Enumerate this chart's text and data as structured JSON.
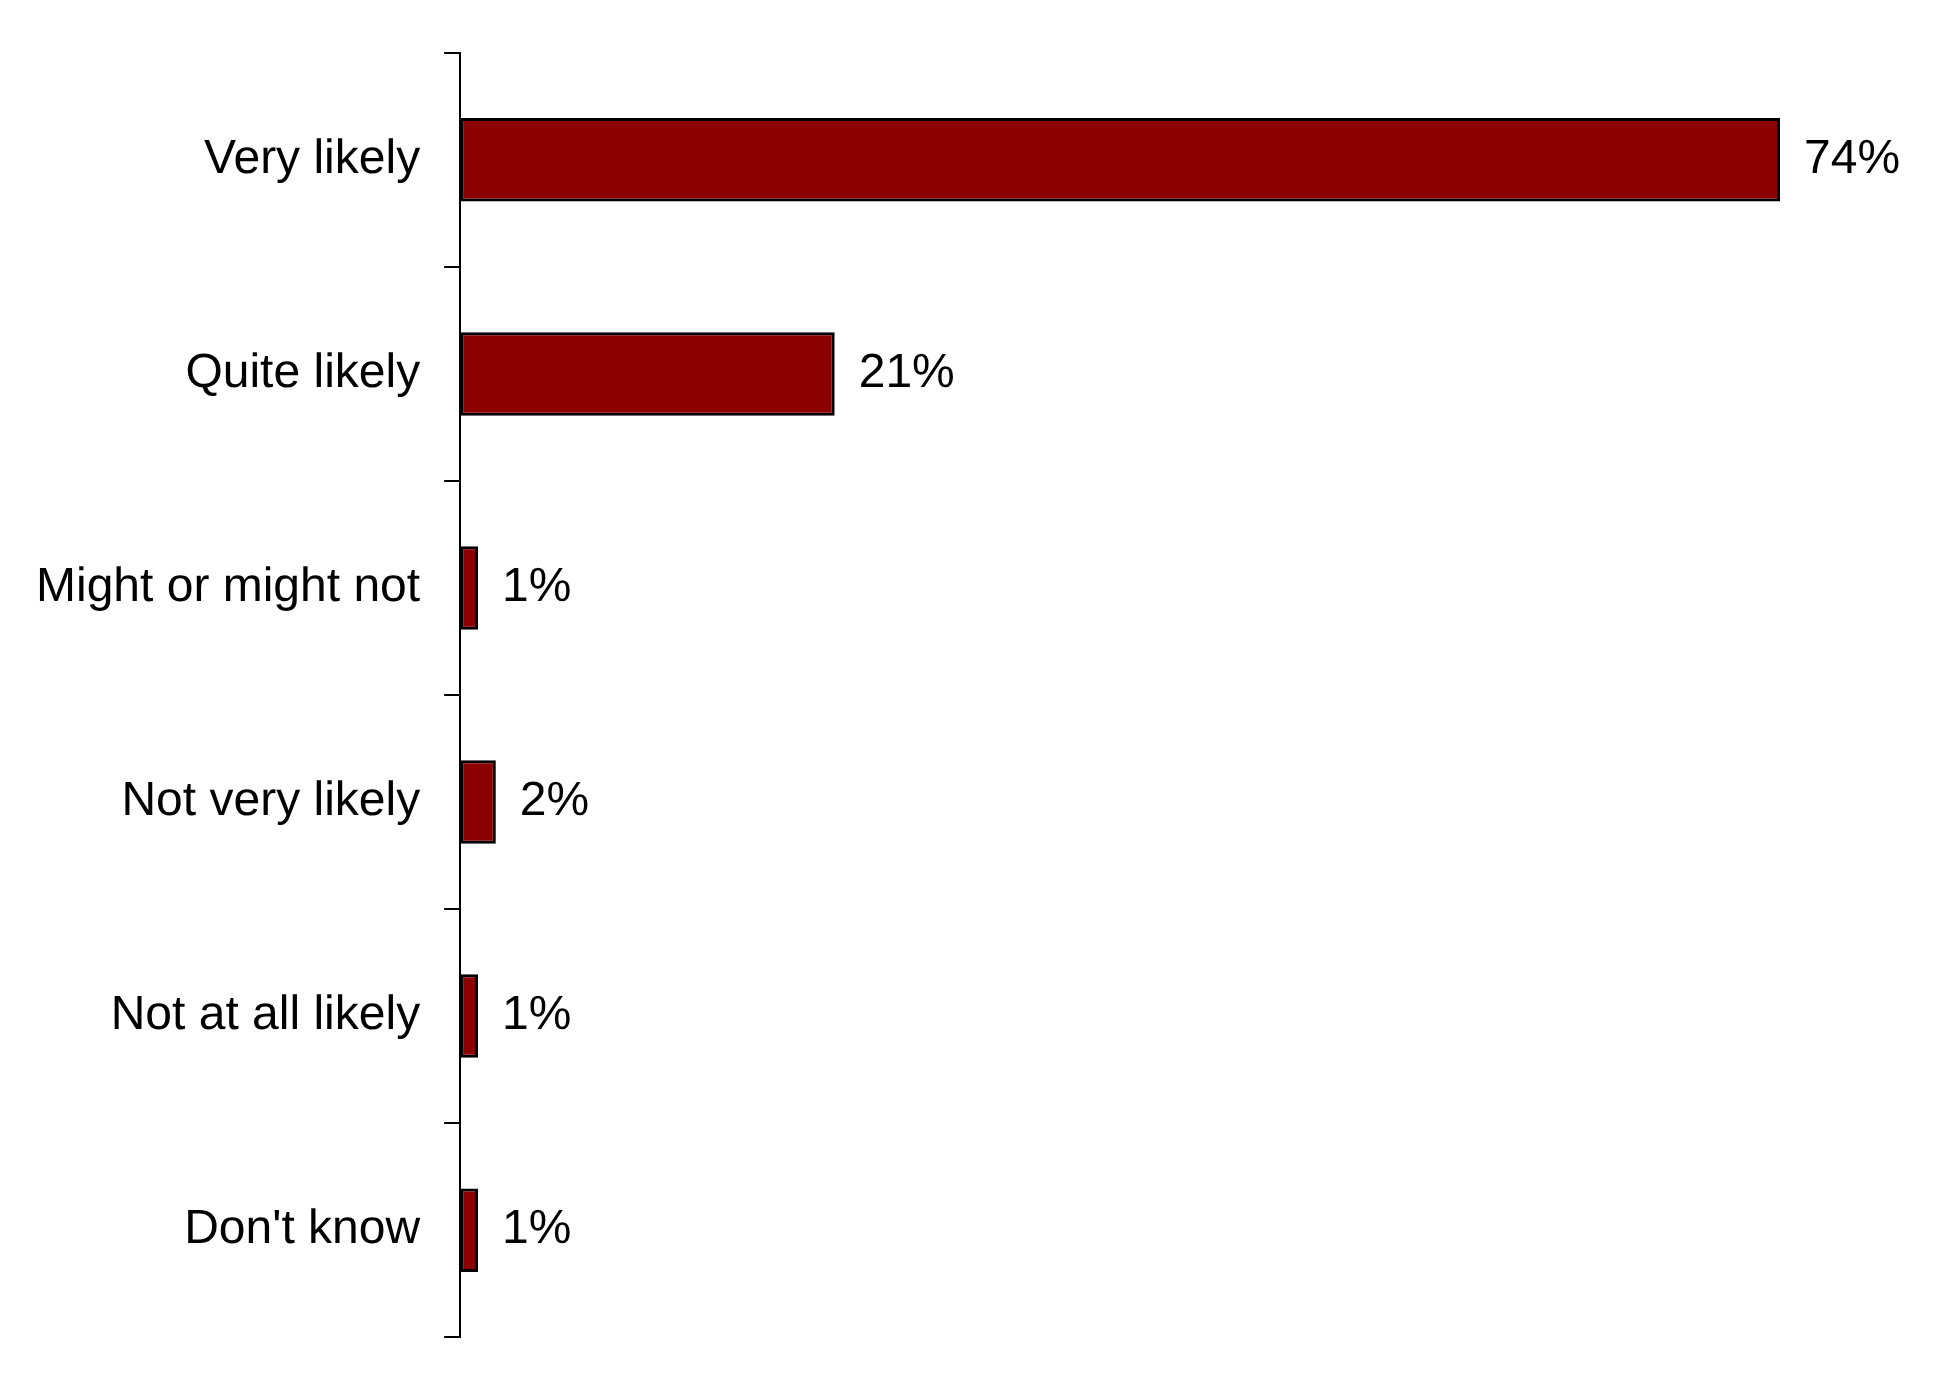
{
  "chart_data": {
    "type": "bar",
    "orientation": "horizontal",
    "categories": [
      "Very likely",
      "Quite likely",
      "Might or might not",
      "Not very likely",
      "Not at all likely",
      "Don't know"
    ],
    "values": [
      74,
      21,
      1,
      2,
      1,
      1
    ],
    "color": "#8b0000",
    "value_labels": [
      "74%",
      "21%",
      "1%",
      "2%",
      "1%",
      "1%"
    ],
    "xlim": [
      0,
      74
    ],
    "tick_labels": "y",
    "grid": false,
    "legend": false
  }
}
